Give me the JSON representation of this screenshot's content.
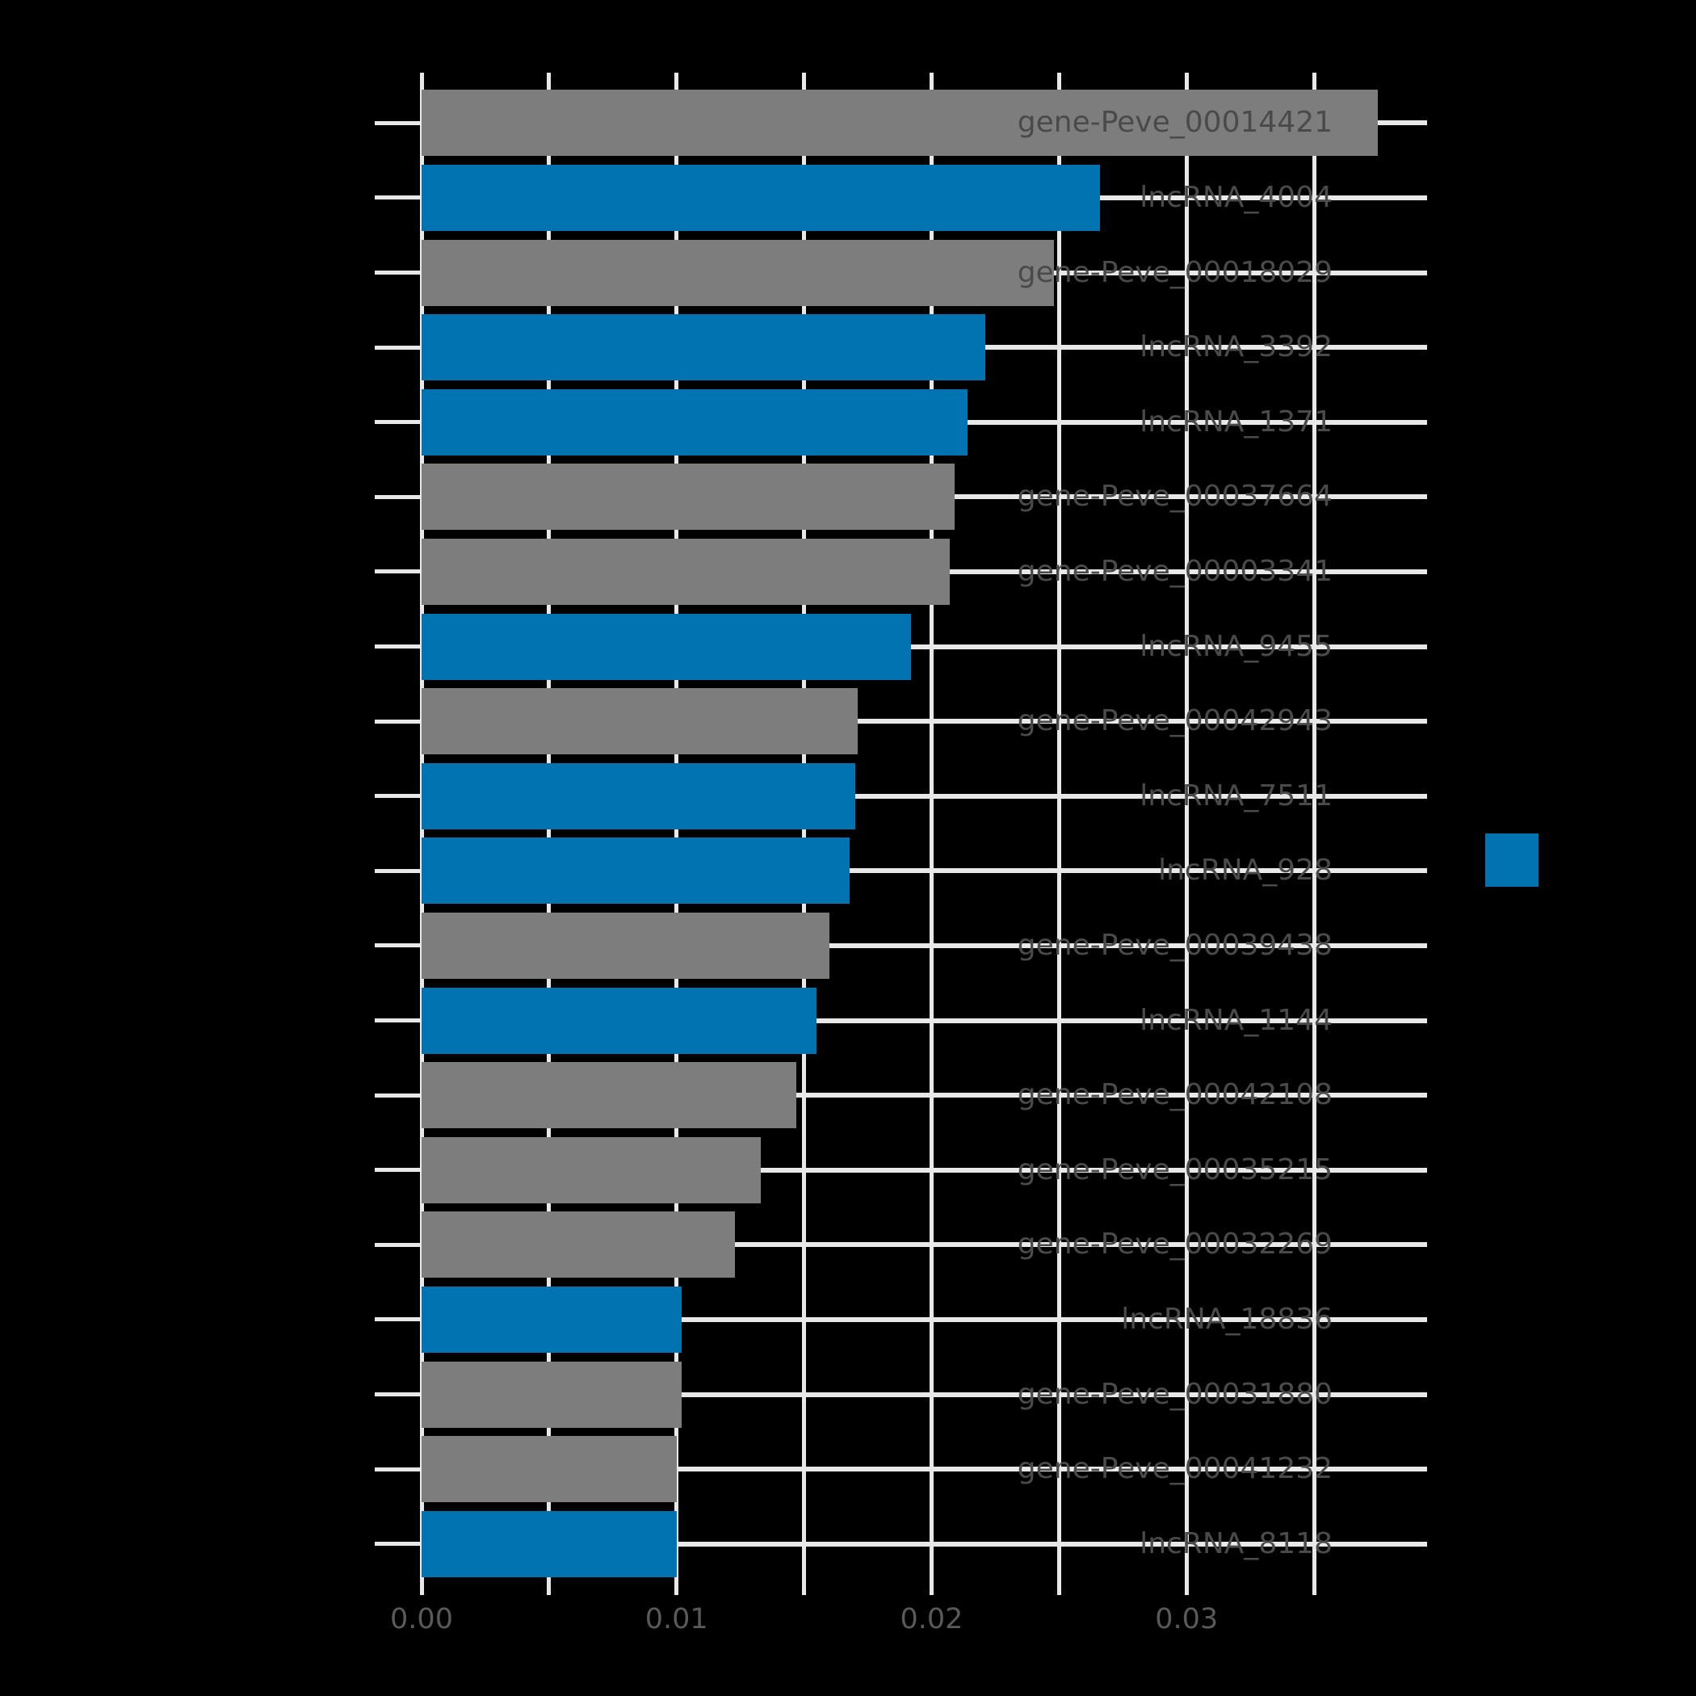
{
  "chart_data": {
    "type": "bar",
    "orientation": "horizontal",
    "title": "",
    "xlabel": "",
    "ylabel": "",
    "categories": [
      "gene-Peve_00014421",
      "lncRNA_4004",
      "gene-Peve_00018029",
      "lncRNA_3392",
      "lncRNA_1371",
      "gene-Peve_00037664",
      "gene-Peve_00003341",
      "lncRNA_9455",
      "gene-Peve_00042943",
      "lncRNA_7511",
      "lncRNA_928",
      "gene-Peve_00039438",
      "lncRNA_1144",
      "gene-Peve_00042108",
      "gene-Peve_00035215",
      "gene-Peve_00032269",
      "lncRNA_18836",
      "gene-Peve_00031880",
      "gene-Peve_00041232",
      "lncRNA_8118"
    ],
    "values": [
      0.0375,
      0.0266,
      0.0248,
      0.0221,
      0.0214,
      0.0209,
      0.0207,
      0.0192,
      0.0171,
      0.017,
      0.0168,
      0.016,
      0.0155,
      0.0147,
      0.0133,
      0.0123,
      0.0102,
      0.0102,
      0.01,
      0.01
    ],
    "bar_types": [
      "gene",
      "lncRNA",
      "gene",
      "lncRNA",
      "lncRNA",
      "gene",
      "gene",
      "lncRNA",
      "gene",
      "lncRNA",
      "lncRNA",
      "gene",
      "lncRNA",
      "gene",
      "gene",
      "gene",
      "lncRNA",
      "gene",
      "gene",
      "lncRNA"
    ],
    "xlim": [
      0,
      0.0394
    ],
    "x_tick_labels": [
      "0.00",
      "0.01",
      "0.02",
      "0.03"
    ],
    "x_tick_values": [
      0,
      0.01,
      0.02,
      0.03
    ],
    "x_minor_grid_step": 0.005,
    "grid": true,
    "legend": {
      "position": "right",
      "items": [
        {
          "label": "",
          "color": "#0173b0",
          "represents": "lncRNA"
        }
      ]
    }
  },
  "colors": {
    "background": "#000000",
    "bar_gene": "#7d7d7d",
    "bar_lncrna": "#0173b0",
    "grid": "#e8e8e8",
    "tick": "#e8e8e8",
    "x_tick_text": "#595959",
    "y_label_text": "#4a4a4a"
  }
}
